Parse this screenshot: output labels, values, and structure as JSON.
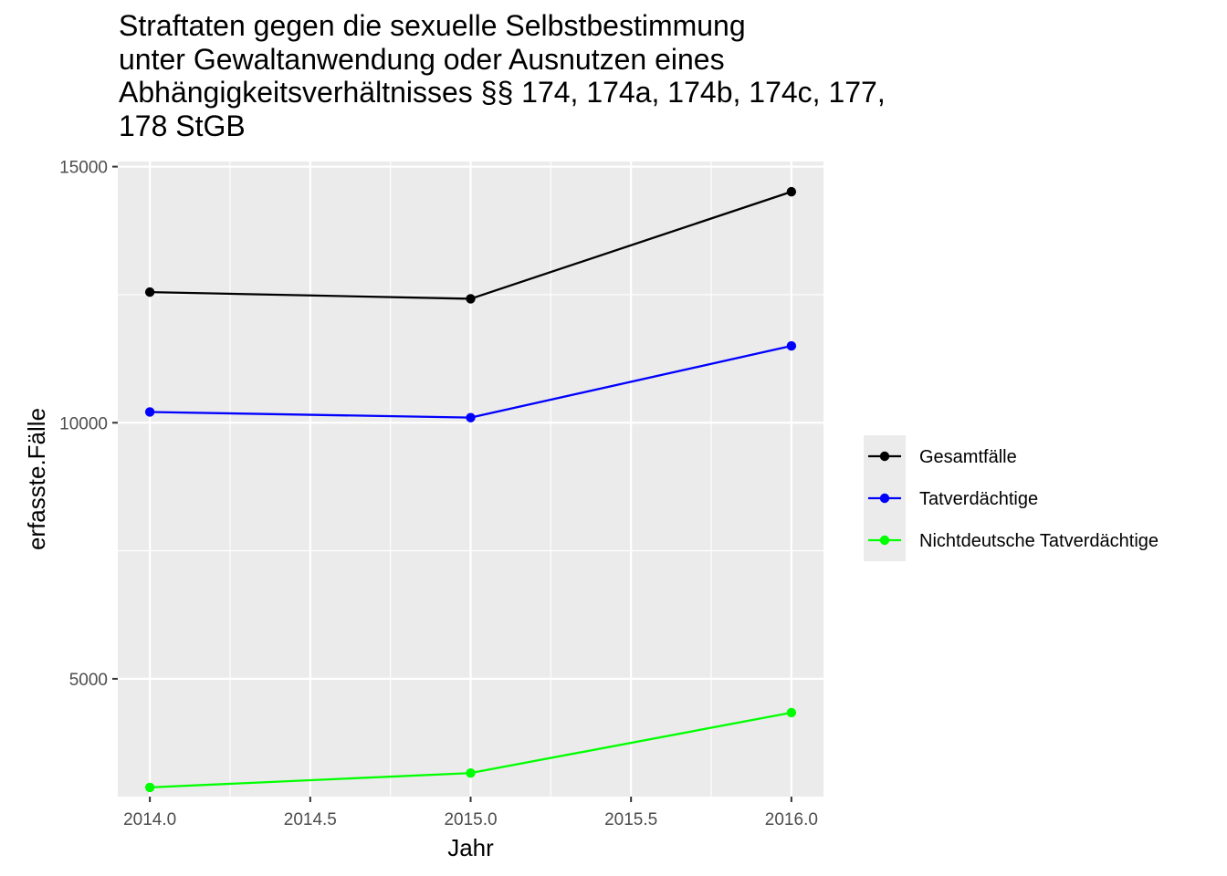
{
  "chart_data": {
    "type": "line",
    "title_lines": [
      "Straftaten gegen die sexuelle Selbstbestimmung",
      "unter Gewaltanwendung oder Ausnutzen eines",
      "Abhängigkeitsverhältnisses §§ 174, 174a, 174b, 174c, 177,",
      "178 StGB"
    ],
    "xlabel": "Jahr",
    "ylabel": "erfasste.Fälle",
    "x": [
      2014,
      2015,
      2016
    ],
    "xlim": [
      2013.9,
      2016.1
    ],
    "ylim": [
      2700,
      15100
    ],
    "x_ticks": [
      2014.0,
      2014.5,
      2015.0,
      2015.5,
      2016.0
    ],
    "x_tick_labels": [
      "2014.0",
      "2014.5",
      "2015.0",
      "2015.5",
      "2016.0"
    ],
    "y_ticks": [
      5000,
      10000,
      15000
    ],
    "y_tick_labels": [
      "5000",
      "10000",
      "15000"
    ],
    "grid": true,
    "legend_position": "right",
    "series": [
      {
        "name": "Gesamtfälle",
        "color": "#000000",
        "values": [
          12550,
          12420,
          14510
        ]
      },
      {
        "name": "Tatverdächtige",
        "color": "#0000ff",
        "values": [
          10210,
          10100,
          11500
        ]
      },
      {
        "name": "Nichtdeutsche Tatverdächtige",
        "color": "#00ff00",
        "values": [
          2880,
          3160,
          4340
        ]
      }
    ]
  }
}
